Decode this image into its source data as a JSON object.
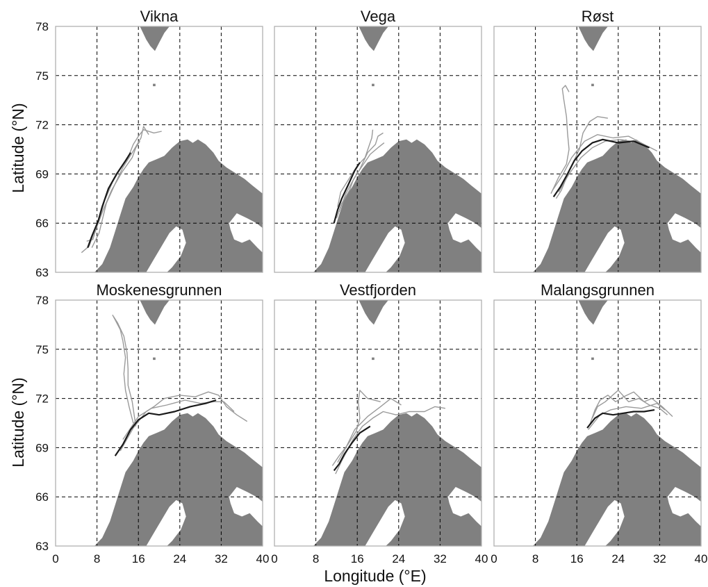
{
  "figure": {
    "xlabel": "Longitude (°E)",
    "ylabel": "Latitude (°N)",
    "x_ticks": [
      "0",
      "8",
      "16",
      "24",
      "32",
      "40"
    ],
    "y_ticks": [
      "63",
      "66",
      "69",
      "72",
      "75",
      "78"
    ]
  },
  "colors": {
    "land": "#808080",
    "track_light": "#9a9a9a",
    "track_dark": "#1a1a1a",
    "grid": "#000000",
    "frame": "#b0b0b0"
  },
  "chart_data": [
    {
      "type": "map",
      "title": "Vikna",
      "xlim": [
        0,
        40
      ],
      "ylim": [
        63,
        78
      ],
      "grid": true,
      "tracks_dark": [
        [
          [
            6.2,
            64.5
          ],
          [
            7.0,
            65.2
          ],
          [
            8.2,
            66.1
          ],
          [
            9.0,
            67.0
          ],
          [
            10.2,
            68.1
          ],
          [
            11.8,
            69.0
          ],
          [
            13.5,
            69.8
          ],
          [
            14.5,
            70.3
          ]
        ]
      ],
      "tracks_light": [
        [
          [
            5.0,
            64.2
          ],
          [
            6.5,
            64.6
          ],
          [
            7.5,
            65.5
          ],
          [
            8.5,
            66.3
          ],
          [
            9.5,
            67.4
          ],
          [
            11.0,
            68.5
          ],
          [
            12.5,
            69.3
          ],
          [
            14.0,
            70.0
          ],
          [
            15.0,
            70.8
          ],
          [
            16.0,
            71.3
          ],
          [
            17.0,
            71.7
          ],
          [
            19.0,
            71.5
          ],
          [
            20.5,
            71.6
          ]
        ],
        [
          [
            6.0,
            64.9
          ],
          [
            7.2,
            65.0
          ],
          [
            8.0,
            65.8
          ],
          [
            9.2,
            66.8
          ],
          [
            10.8,
            68.0
          ],
          [
            12.8,
            69.1
          ],
          [
            14.8,
            70.0
          ],
          [
            15.5,
            70.6
          ],
          [
            16.3,
            71.0
          ]
        ],
        [
          [
            7.0,
            64.5
          ],
          [
            8.4,
            65.4
          ],
          [
            9.8,
            67.2
          ],
          [
            11.5,
            68.4
          ],
          [
            13.0,
            69.4
          ],
          [
            15.0,
            70.4
          ],
          [
            16.5,
            71.2
          ],
          [
            17.0,
            71.9
          ],
          [
            18.0,
            71.4
          ]
        ]
      ]
    },
    {
      "type": "map",
      "title": "Vega",
      "xlim": [
        0,
        40
      ],
      "ylim": [
        63,
        78
      ],
      "grid": true,
      "tracks_dark": [
        [
          [
            11.5,
            66.0
          ],
          [
            12.2,
            66.8
          ],
          [
            13.0,
            67.5
          ],
          [
            14.2,
            68.3
          ],
          [
            15.5,
            69.2
          ],
          [
            16.5,
            69.7
          ]
        ]
      ],
      "tracks_light": [
        [
          [
            12.0,
            66.3
          ],
          [
            13.0,
            67.2
          ],
          [
            14.5,
            68.0
          ],
          [
            15.2,
            68.6
          ],
          [
            16.5,
            69.3
          ],
          [
            18.0,
            70.3
          ],
          [
            19.5,
            70.8
          ],
          [
            20.0,
            71.3
          ],
          [
            21.0,
            71.5
          ]
        ],
        [
          [
            12.5,
            66.7
          ],
          [
            13.8,
            67.8
          ],
          [
            15.5,
            68.8
          ],
          [
            17.0,
            69.5
          ],
          [
            18.5,
            70.2
          ],
          [
            20.0,
            70.6
          ],
          [
            21.2,
            70.9
          ]
        ],
        [
          [
            12.2,
            67.0
          ],
          [
            12.8,
            67.9
          ],
          [
            14.0,
            68.5
          ],
          [
            16.0,
            69.5
          ],
          [
            17.5,
            70.0
          ],
          [
            18.8,
            71.2
          ],
          [
            19.0,
            71.7
          ]
        ]
      ]
    },
    {
      "type": "map",
      "title": "Røst",
      "xlim": [
        0,
        40
      ],
      "ylim": [
        63,
        78
      ],
      "grid": true,
      "tracks_dark": [
        [
          [
            11.5,
            67.6
          ],
          [
            12.8,
            68.2
          ],
          [
            14.2,
            69.0
          ],
          [
            15.5,
            69.8
          ],
          [
            17.0,
            70.4
          ],
          [
            19.0,
            70.9
          ],
          [
            21.0,
            71.1
          ],
          [
            24.0,
            70.9
          ],
          [
            27.0,
            71.0
          ],
          [
            30.0,
            70.6
          ]
        ]
      ],
      "tracks_light": [
        [
          [
            11.0,
            67.8
          ],
          [
            12.5,
            68.8
          ],
          [
            14.0,
            69.6
          ],
          [
            14.5,
            70.5
          ],
          [
            14.2,
            71.5
          ],
          [
            14.0,
            72.5
          ],
          [
            13.5,
            73.5
          ],
          [
            13.2,
            74.2
          ],
          [
            13.8,
            74.4
          ],
          [
            14.5,
            74.0
          ]
        ],
        [
          [
            12.0,
            67.5
          ],
          [
            13.0,
            68.0
          ],
          [
            14.8,
            69.4
          ],
          [
            16.5,
            70.5
          ],
          [
            17.2,
            71.5
          ],
          [
            18.5,
            72.2
          ],
          [
            20.0,
            72.5
          ],
          [
            22.0,
            72.4
          ]
        ],
        [
          [
            11.3,
            68.0
          ],
          [
            13.2,
            68.9
          ],
          [
            15.0,
            70.0
          ],
          [
            17.5,
            71.0
          ],
          [
            20.0,
            71.4
          ],
          [
            23.0,
            71.2
          ],
          [
            26.0,
            71.3
          ],
          [
            29.0,
            70.8
          ],
          [
            31.5,
            70.4
          ]
        ],
        [
          [
            12.5,
            67.9
          ],
          [
            14.5,
            69.0
          ],
          [
            16.8,
            70.0
          ],
          [
            19.0,
            70.6
          ],
          [
            21.5,
            71.0
          ],
          [
            24.5,
            71.1
          ],
          [
            28.0,
            70.9
          ]
        ]
      ]
    },
    {
      "type": "map",
      "title": "Moskenesgrunnen",
      "xlim": [
        0,
        40
      ],
      "ylim": [
        63,
        78
      ],
      "grid": true,
      "tracks_dark": [
        [
          [
            11.5,
            68.5
          ],
          [
            13.0,
            69.2
          ],
          [
            14.5,
            70.1
          ],
          [
            16.0,
            70.7
          ],
          [
            18.0,
            71.1
          ],
          [
            20.0,
            71.0
          ],
          [
            23.0,
            71.2
          ],
          [
            26.0,
            71.5
          ],
          [
            29.0,
            71.7
          ],
          [
            31.0,
            71.9
          ]
        ]
      ],
      "tracks_light": [
        [
          [
            15.0,
            70.5
          ],
          [
            14.2,
            71.5
          ],
          [
            13.5,
            72.5
          ],
          [
            13.2,
            73.5
          ],
          [
            13.5,
            74.5
          ],
          [
            13.0,
            75.5
          ],
          [
            12.5,
            76.2
          ],
          [
            11.5,
            76.8
          ],
          [
            11.0,
            77.1
          ]
        ],
        [
          [
            15.5,
            70.3
          ],
          [
            14.8,
            71.8
          ],
          [
            14.0,
            72.8
          ],
          [
            14.0,
            73.8
          ],
          [
            13.8,
            74.8
          ],
          [
            13.2,
            75.8
          ],
          [
            12.0,
            76.6
          ],
          [
            11.2,
            77.0
          ]
        ],
        [
          [
            12.5,
            68.8
          ],
          [
            15.0,
            70.2
          ],
          [
            17.5,
            71.2
          ],
          [
            19.0,
            71.5
          ],
          [
            21.0,
            72.0
          ],
          [
            24.0,
            72.2
          ],
          [
            27.0,
            72.1
          ],
          [
            29.5,
            72.4
          ],
          [
            31.5,
            72.2
          ],
          [
            33.0,
            71.5
          ],
          [
            35.0,
            71.0
          ],
          [
            37.0,
            70.6
          ]
        ],
        [
          [
            13.0,
            69.5
          ],
          [
            16.0,
            70.9
          ],
          [
            18.5,
            71.4
          ],
          [
            21.5,
            71.6
          ],
          [
            25.0,
            71.9
          ],
          [
            28.0,
            71.7
          ],
          [
            30.5,
            71.8
          ],
          [
            32.5,
            71.8
          ],
          [
            34.5,
            71.2
          ]
        ]
      ]
    },
    {
      "type": "map",
      "title": "Vestfjorden",
      "xlim": [
        0,
        40
      ],
      "ylim": [
        63,
        78
      ],
      "grid": true,
      "tracks_dark": [
        [
          [
            11.5,
            67.6
          ],
          [
            12.5,
            68.0
          ],
          [
            13.5,
            68.6
          ],
          [
            15.0,
            69.3
          ],
          [
            16.5,
            69.9
          ],
          [
            18.5,
            70.3
          ]
        ]
      ],
      "tracks_light": [
        [
          [
            11.2,
            67.9
          ],
          [
            12.5,
            68.5
          ],
          [
            14.2,
            69.2
          ],
          [
            15.8,
            70.0
          ],
          [
            16.5,
            70.8
          ],
          [
            16.2,
            71.8
          ],
          [
            16.5,
            72.5
          ],
          [
            18.0,
            72.0
          ],
          [
            20.5,
            71.8
          ]
        ],
        [
          [
            11.8,
            67.4
          ],
          [
            13.0,
            68.2
          ],
          [
            15.2,
            69.5
          ],
          [
            17.0,
            70.3
          ],
          [
            19.0,
            70.8
          ],
          [
            21.0,
            71.2
          ],
          [
            23.5,
            71.0
          ],
          [
            26.0,
            71.2
          ],
          [
            29.0,
            71.2
          ],
          [
            31.0,
            71.5
          ],
          [
            33.0,
            71.4
          ]
        ],
        [
          [
            12.2,
            68.1
          ],
          [
            13.8,
            69.0
          ],
          [
            15.5,
            70.1
          ],
          [
            18.0,
            70.9
          ],
          [
            20.5,
            71.5
          ],
          [
            22.5,
            72.0
          ],
          [
            24.5,
            71.6
          ]
        ]
      ]
    },
    {
      "type": "map",
      "title": "Malangsgrunnen",
      "xlim": [
        0,
        40
      ],
      "ylim": [
        63,
        78
      ],
      "grid": true,
      "tracks_dark": [
        [
          [
            18.0,
            70.2
          ],
          [
            19.5,
            70.8
          ],
          [
            21.0,
            71.1
          ],
          [
            23.0,
            71.0
          ],
          [
            25.0,
            71.1
          ],
          [
            27.0,
            71.2
          ],
          [
            29.0,
            71.2
          ],
          [
            31.0,
            71.3
          ]
        ]
      ],
      "tracks_light": [
        [
          [
            18.5,
            70.4
          ],
          [
            19.5,
            71.3
          ],
          [
            20.5,
            71.9
          ],
          [
            22.0,
            72.2
          ],
          [
            23.5,
            71.8
          ],
          [
            25.0,
            72.1
          ],
          [
            27.0,
            72.4
          ],
          [
            29.0,
            71.8
          ],
          [
            30.5,
            72.0
          ],
          [
            32.5,
            71.5
          ],
          [
            34.5,
            70.9
          ]
        ],
        [
          [
            19.0,
            70.8
          ],
          [
            20.0,
            71.5
          ],
          [
            21.5,
            71.8
          ],
          [
            24.0,
            72.5
          ],
          [
            26.0,
            71.8
          ],
          [
            28.0,
            72.0
          ],
          [
            30.0,
            71.6
          ],
          [
            32.0,
            71.4
          ],
          [
            33.5,
            71.0
          ]
        ],
        [
          [
            18.2,
            70.1
          ],
          [
            20.5,
            71.0
          ],
          [
            22.5,
            71.3
          ],
          [
            25.5,
            71.5
          ],
          [
            28.5,
            71.4
          ],
          [
            31.5,
            71.7
          ],
          [
            33.0,
            71.3
          ]
        ]
      ]
    }
  ]
}
